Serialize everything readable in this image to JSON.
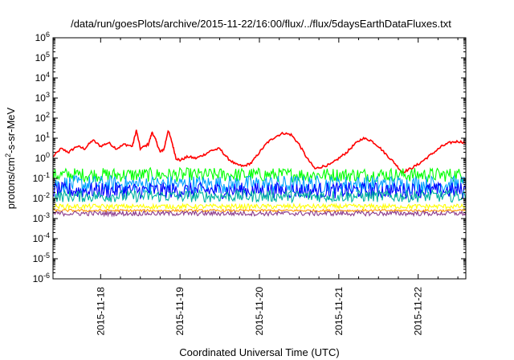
{
  "chart_data": {
    "type": "line",
    "title": "/data/run/goesPlots/archive/2015-11-22/16:00/flux/../flux/5daysEarthDataFluxes.txt",
    "xlabel": "Coordinated Universal Time (UTC)",
    "ylabel_parts": [
      "protons/cm",
      "2",
      "-s-sr-MeV"
    ],
    "x_ticks": [
      "2015-11-18",
      "2015-11-19",
      "2015-11-20",
      "2015-11-21",
      "2015-11-22"
    ],
    "x_range_days": [
      -0.6,
      4.6
    ],
    "y_scale": "log",
    "y_range_exp": [
      -6,
      6
    ],
    "y_tick_exponents": [
      -6,
      -5,
      -4,
      -3,
      -2,
      -1,
      0,
      1,
      2,
      3,
      4,
      5,
      6
    ],
    "grid": false,
    "series": [
      {
        "color": "#ff0000",
        "points": [
          [
            -0.6,
            1.2
          ],
          [
            -0.5,
            3.0
          ],
          [
            -0.4,
            2.0
          ],
          [
            -0.3,
            4.0
          ],
          [
            -0.2,
            3.0
          ],
          [
            -0.1,
            8.0
          ],
          [
            0.0,
            4.0
          ],
          [
            0.1,
            6.0
          ],
          [
            0.2,
            3.0
          ],
          [
            0.3,
            5.0
          ],
          [
            0.4,
            4.0
          ],
          [
            0.45,
            25
          ],
          [
            0.5,
            3.0
          ],
          [
            0.6,
            5.0
          ],
          [
            0.65,
            20
          ],
          [
            0.7,
            7.0
          ],
          [
            0.75,
            2.0
          ],
          [
            0.8,
            3.0
          ],
          [
            0.85,
            25
          ],
          [
            0.9,
            6.0
          ],
          [
            0.95,
            1.0
          ],
          [
            1.0,
            0.8
          ],
          [
            1.1,
            1.2
          ],
          [
            1.2,
            1.0
          ],
          [
            1.3,
            1.5
          ],
          [
            1.4,
            2.5
          ],
          [
            1.5,
            3.0
          ],
          [
            1.6,
            1.0
          ],
          [
            1.7,
            0.5
          ],
          [
            1.8,
            0.4
          ],
          [
            1.9,
            0.6
          ],
          [
            2.0,
            2.0
          ],
          [
            2.1,
            6.0
          ],
          [
            2.2,
            12
          ],
          [
            2.3,
            18
          ],
          [
            2.4,
            15
          ],
          [
            2.5,
            5.0
          ],
          [
            2.6,
            1.0
          ],
          [
            2.7,
            0.3
          ],
          [
            2.8,
            0.4
          ],
          [
            2.9,
            0.5
          ],
          [
            3.0,
            1.0
          ],
          [
            3.1,
            2.0
          ],
          [
            3.2,
            5.0
          ],
          [
            3.3,
            10
          ],
          [
            3.4,
            8.0
          ],
          [
            3.5,
            4.0
          ],
          [
            3.6,
            1.5
          ],
          [
            3.7,
            0.6
          ],
          [
            3.8,
            0.2
          ],
          [
            3.9,
            0.3
          ],
          [
            4.0,
            0.5
          ],
          [
            4.1,
            1.0
          ],
          [
            4.2,
            2.0
          ],
          [
            4.3,
            4.0
          ],
          [
            4.4,
            6.0
          ],
          [
            4.5,
            7.0
          ],
          [
            4.6,
            6.0
          ]
        ]
      },
      {
        "color": "#00ff00",
        "base": 0.15,
        "spread": 0.35
      },
      {
        "color": "#00a0ff",
        "base": 0.05,
        "spread": 0.45
      },
      {
        "color": "#0000ff",
        "base": 0.025,
        "spread": 0.4
      },
      {
        "color": "#00b3a0",
        "base": 0.013,
        "spread": 0.3
      },
      {
        "color": "#ffff00",
        "base": 0.004,
        "spread": 0.12
      },
      {
        "color": "#ff9900",
        "base": 0.0025,
        "spread": 0.06
      },
      {
        "color": "#8b3a8b",
        "base": 0.0018,
        "spread": 0.12
      }
    ]
  }
}
